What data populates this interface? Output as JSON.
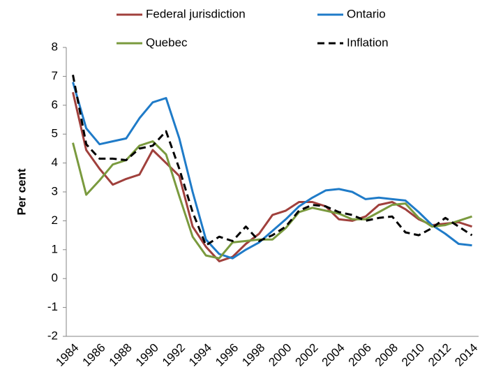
{
  "chart_data": {
    "type": "line",
    "y_label": "Per cent",
    "categories": [
      "1984",
      null,
      "1986",
      null,
      "1988",
      null,
      "1990",
      null,
      "1992",
      null,
      "1994",
      null,
      "1996",
      null,
      "1998",
      null,
      "2000",
      null,
      "2002",
      null,
      "2004",
      null,
      "2006",
      null,
      "2008",
      null,
      "2010",
      null,
      "2012",
      null,
      "2014"
    ],
    "ylim": [
      -2,
      8
    ],
    "yticks": [
      -2,
      -1,
      0,
      1,
      2,
      3,
      4,
      5,
      6,
      7,
      8
    ],
    "series": [
      {
        "name": "Federal jurisdiction",
        "color": "#a0403c",
        "dash": false,
        "values": [
          6.45,
          4.45,
          3.8,
          3.25,
          3.45,
          3.6,
          4.45,
          4.0,
          3.55,
          1.8,
          1.1,
          0.6,
          0.75,
          1.2,
          1.55,
          2.2,
          2.35,
          2.65,
          2.65,
          2.5,
          2.05,
          2.0,
          2.15,
          2.55,
          2.65,
          2.4,
          2.05,
          1.85,
          1.9,
          1.95,
          1.8
        ]
      },
      {
        "name": "Ontario",
        "color": "#1f7bc8",
        "dash": false,
        "values": [
          6.8,
          5.2,
          4.65,
          4.75,
          4.85,
          5.55,
          6.1,
          6.25,
          4.85,
          3.0,
          1.35,
          0.85,
          0.7,
          1.0,
          1.25,
          1.65,
          2.05,
          2.5,
          2.8,
          3.05,
          3.1,
          3.0,
          2.75,
          2.8,
          2.75,
          2.7,
          2.3,
          1.85,
          1.55,
          1.2,
          1.15
        ]
      },
      {
        "name": "Quebec",
        "color": "#7a9a3e",
        "dash": false,
        "values": [
          4.7,
          2.9,
          3.4,
          3.95,
          4.1,
          4.6,
          4.75,
          4.3,
          2.85,
          1.45,
          0.8,
          0.7,
          1.25,
          1.3,
          1.35,
          1.35,
          1.75,
          2.3,
          2.45,
          2.35,
          2.25,
          2.05,
          2.05,
          2.3,
          2.55,
          2.6,
          2.1,
          1.8,
          1.85,
          2.0,
          2.15
        ]
      },
      {
        "name": "Inflation",
        "color": "#000000",
        "dash": true,
        "values": [
          7.05,
          4.65,
          4.15,
          4.15,
          4.1,
          4.5,
          4.6,
          5.1,
          3.8,
          2.3,
          1.15,
          1.45,
          1.3,
          1.8,
          1.3,
          1.5,
          1.8,
          2.35,
          2.55,
          2.5,
          2.3,
          2.2,
          2.0,
          2.1,
          2.15,
          1.6,
          1.5,
          1.75,
          2.1,
          1.8,
          1.5
        ]
      }
    ]
  }
}
